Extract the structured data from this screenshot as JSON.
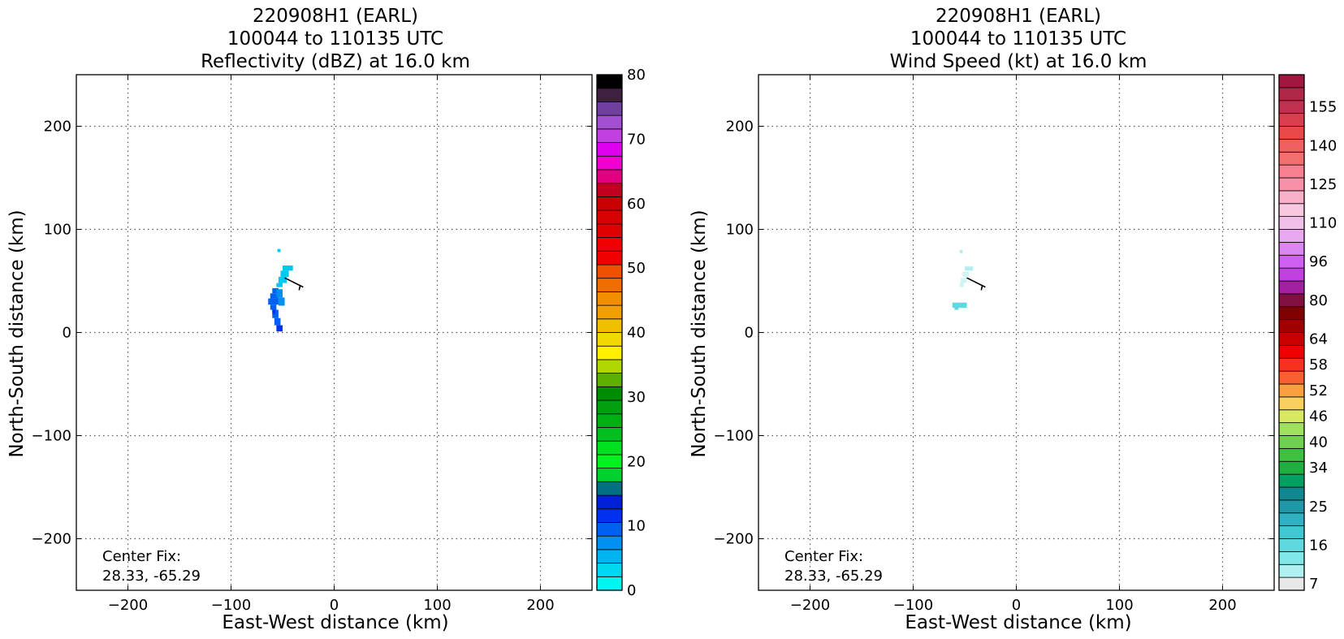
{
  "panels": [
    {
      "title_line1": "220908H1 (EARL)",
      "title_line2": "100044 to 110135 UTC",
      "title_line3": "Reflectivity (dBZ) at 16.0 km",
      "xlabel": "East-West distance (km)",
      "ylabel": "North-South distance (km)",
      "center_fix_label": "Center Fix:",
      "center_fix_value": "28.33, -65.29",
      "colorbar": {
        "ticks": [
          "0",
          "10",
          "20",
          "30",
          "40",
          "50",
          "60",
          "70",
          "80"
        ],
        "tick_values": [
          0,
          10,
          20,
          30,
          40,
          50,
          60,
          70,
          80
        ],
        "range": [
          0,
          80
        ],
        "colors": [
          "#00f5f0",
          "#00d8f0",
          "#00b4f0",
          "#0090f0",
          "#0060f0",
          "#0030f0",
          "#0020d8",
          "#007080",
          "#00d030",
          "#00f020",
          "#00e020",
          "#00c020",
          "#00b010",
          "#00a010",
          "#008c00",
          "#5cb000",
          "#b0d800",
          "#fff000",
          "#f0d800",
          "#f0c000",
          "#f0a000",
          "#f09000",
          "#f06e00",
          "#f05000",
          "#f00000",
          "#f00000",
          "#e00000",
          "#d80000",
          "#c80000",
          "#c00020",
          "#e00080",
          "#f000d0",
          "#e000f0",
          "#c040e0",
          "#a050d0",
          "#7040a0",
          "#402040",
          "#000000"
        ]
      },
      "data_colors": [
        "#00c8f0",
        "#0090f0",
        "#0060f0",
        "#0030f0"
      ]
    },
    {
      "title_line1": "220908H1 (EARL)",
      "title_line2": "100044 to 110135 UTC",
      "title_line3": "Wind Speed (kt) at 16.0 km",
      "xlabel": "East-West distance (km)",
      "ylabel": "North-South distance (km)",
      "center_fix_label": "Center Fix:",
      "center_fix_value": "28.33, -65.29",
      "colorbar": {
        "ticks": [
          "7",
          "16",
          "25",
          "34",
          "40",
          "46",
          "52",
          "58",
          "64",
          "80",
          "96",
          "110",
          "125",
          "140",
          "155"
        ],
        "colors": [
          "#e8e8e8",
          "#b0f0f0",
          "#80e8e8",
          "#60d8e0",
          "#40c8d0",
          "#30b0c0",
          "#2098a8",
          "#108890",
          "#00a060",
          "#20b040",
          "#40c040",
          "#70d050",
          "#a0e060",
          "#d8e860",
          "#f8d060",
          "#f8a040",
          "#f86030",
          "#f83020",
          "#f00000",
          "#c80000",
          "#a00000",
          "#800000",
          "#801040",
          "#a020a0",
          "#c040e0",
          "#d060f0",
          "#d888f0",
          "#e8a8f0",
          "#f0c0e8",
          "#f8c8e0",
          "#f8b0c8",
          "#f890a8",
          "#f88090",
          "#f07070",
          "#f06060",
          "#e84848",
          "#d84050",
          "#c03050",
          "#b02848",
          "#a01840"
        ],
        "tick_edges": [
          0,
          3,
          6,
          9,
          11,
          13,
          15,
          17,
          19,
          22,
          25,
          28,
          31,
          34,
          37
        ],
        "nbins": 40
      },
      "data_colors": [
        "#b0eef0",
        "#d0f4f4",
        "#60d8e0"
      ]
    }
  ],
  "chart_data": [
    {
      "type": "heatmap",
      "title": "220908H1 (EARL) 100044 to 110135 UTC Reflectivity (dBZ) at 16.0 km",
      "xlabel": "East-West distance (km)",
      "ylabel": "North-South distance (km)",
      "xlim": [
        -250,
        250
      ],
      "ylim": [
        -250,
        250
      ],
      "xticks": [
        -200,
        -100,
        0,
        100,
        200
      ],
      "yticks": [
        -200,
        -100,
        0,
        100,
        200
      ],
      "grid": true,
      "colorbar_range": [
        0,
        80
      ],
      "colorbar_label_ticks": [
        0,
        10,
        20,
        30,
        40,
        50,
        60,
        70,
        80
      ],
      "annotation": "Center Fix: 28.33, -65.29",
      "echo_region_km": {
        "x": [
          -63,
          -38
        ],
        "y": [
          1,
          80
        ]
      }
    },
    {
      "type": "heatmap",
      "title": "220908H1 (EARL) 100044 to 110135 UTC Wind Speed (kt) at 16.0 km",
      "xlabel": "East-West distance (km)",
      "ylabel": "North-South distance (km)",
      "xlim": [
        -250,
        250
      ],
      "ylim": [
        -250,
        250
      ],
      "xticks": [
        -200,
        -100,
        0,
        100,
        200
      ],
      "yticks": [
        -200,
        -100,
        0,
        100,
        200
      ],
      "grid": true,
      "colorbar_label_ticks": [
        7,
        16,
        25,
        34,
        40,
        46,
        52,
        58,
        64,
        80,
        96,
        110,
        125,
        140,
        155
      ],
      "annotation": "Center Fix: 28.33, -65.29",
      "echo_region_km": {
        "x": [
          -60,
          -40
        ],
        "y": [
          23,
          80
        ]
      }
    }
  ]
}
